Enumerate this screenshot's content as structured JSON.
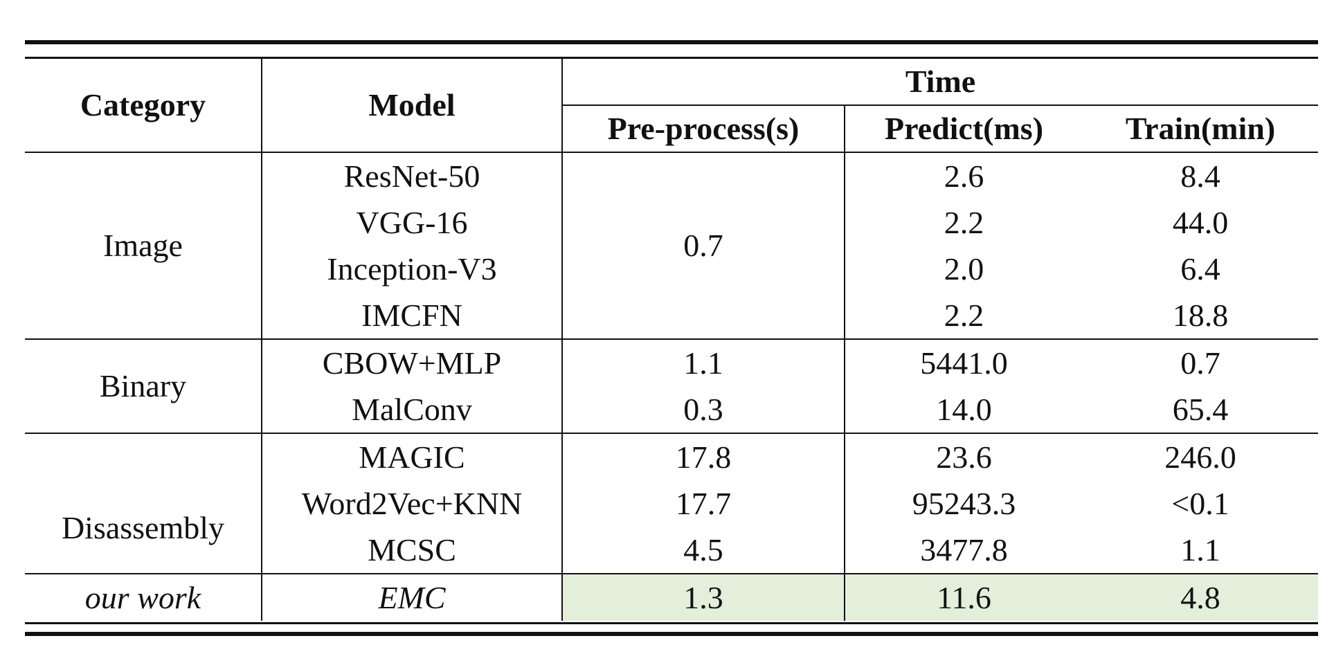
{
  "headers": {
    "category": "Category",
    "model": "Model",
    "time": "Time",
    "preprocess": "Pre-process(s)",
    "predict": "Predict(ms)",
    "train": "Train(min)"
  },
  "groups": {
    "image": {
      "category": "Image",
      "preprocess": "0.7",
      "rows": [
        {
          "model": "ResNet-50",
          "predict": "2.6",
          "train": "8.4"
        },
        {
          "model": "VGG-16",
          "predict": "2.2",
          "train": "44.0"
        },
        {
          "model": "Inception-V3",
          "predict": "2.0",
          "train": "6.4"
        },
        {
          "model": "IMCFN",
          "predict": "2.2",
          "train": "18.8"
        }
      ]
    },
    "binary": {
      "category": "Binary",
      "rows": [
        {
          "model": "CBOW+MLP",
          "preprocess": "1.1",
          "predict": "5441.0",
          "train": "0.7"
        },
        {
          "model": "MalConv",
          "preprocess": "0.3",
          "predict": "14.0",
          "train": "65.4"
        }
      ]
    },
    "disassembly": {
      "category": "Disassembly",
      "rows": [
        {
          "model": "MAGIC",
          "preprocess": "17.8",
          "predict": "23.6",
          "train": "246.0"
        },
        {
          "model": "Word2Vec+KNN",
          "preprocess": "17.7",
          "predict": "95243.3",
          "train": "<0.1"
        },
        {
          "model": "MCSC",
          "preprocess": "4.5",
          "predict": "3477.8",
          "train": "1.1"
        }
      ]
    },
    "ours": {
      "category": "our work",
      "model": "EMC",
      "preprocess": "1.3",
      "predict": "11.6",
      "train": "4.8",
      "highlight_color": "#e3eedb"
    }
  }
}
